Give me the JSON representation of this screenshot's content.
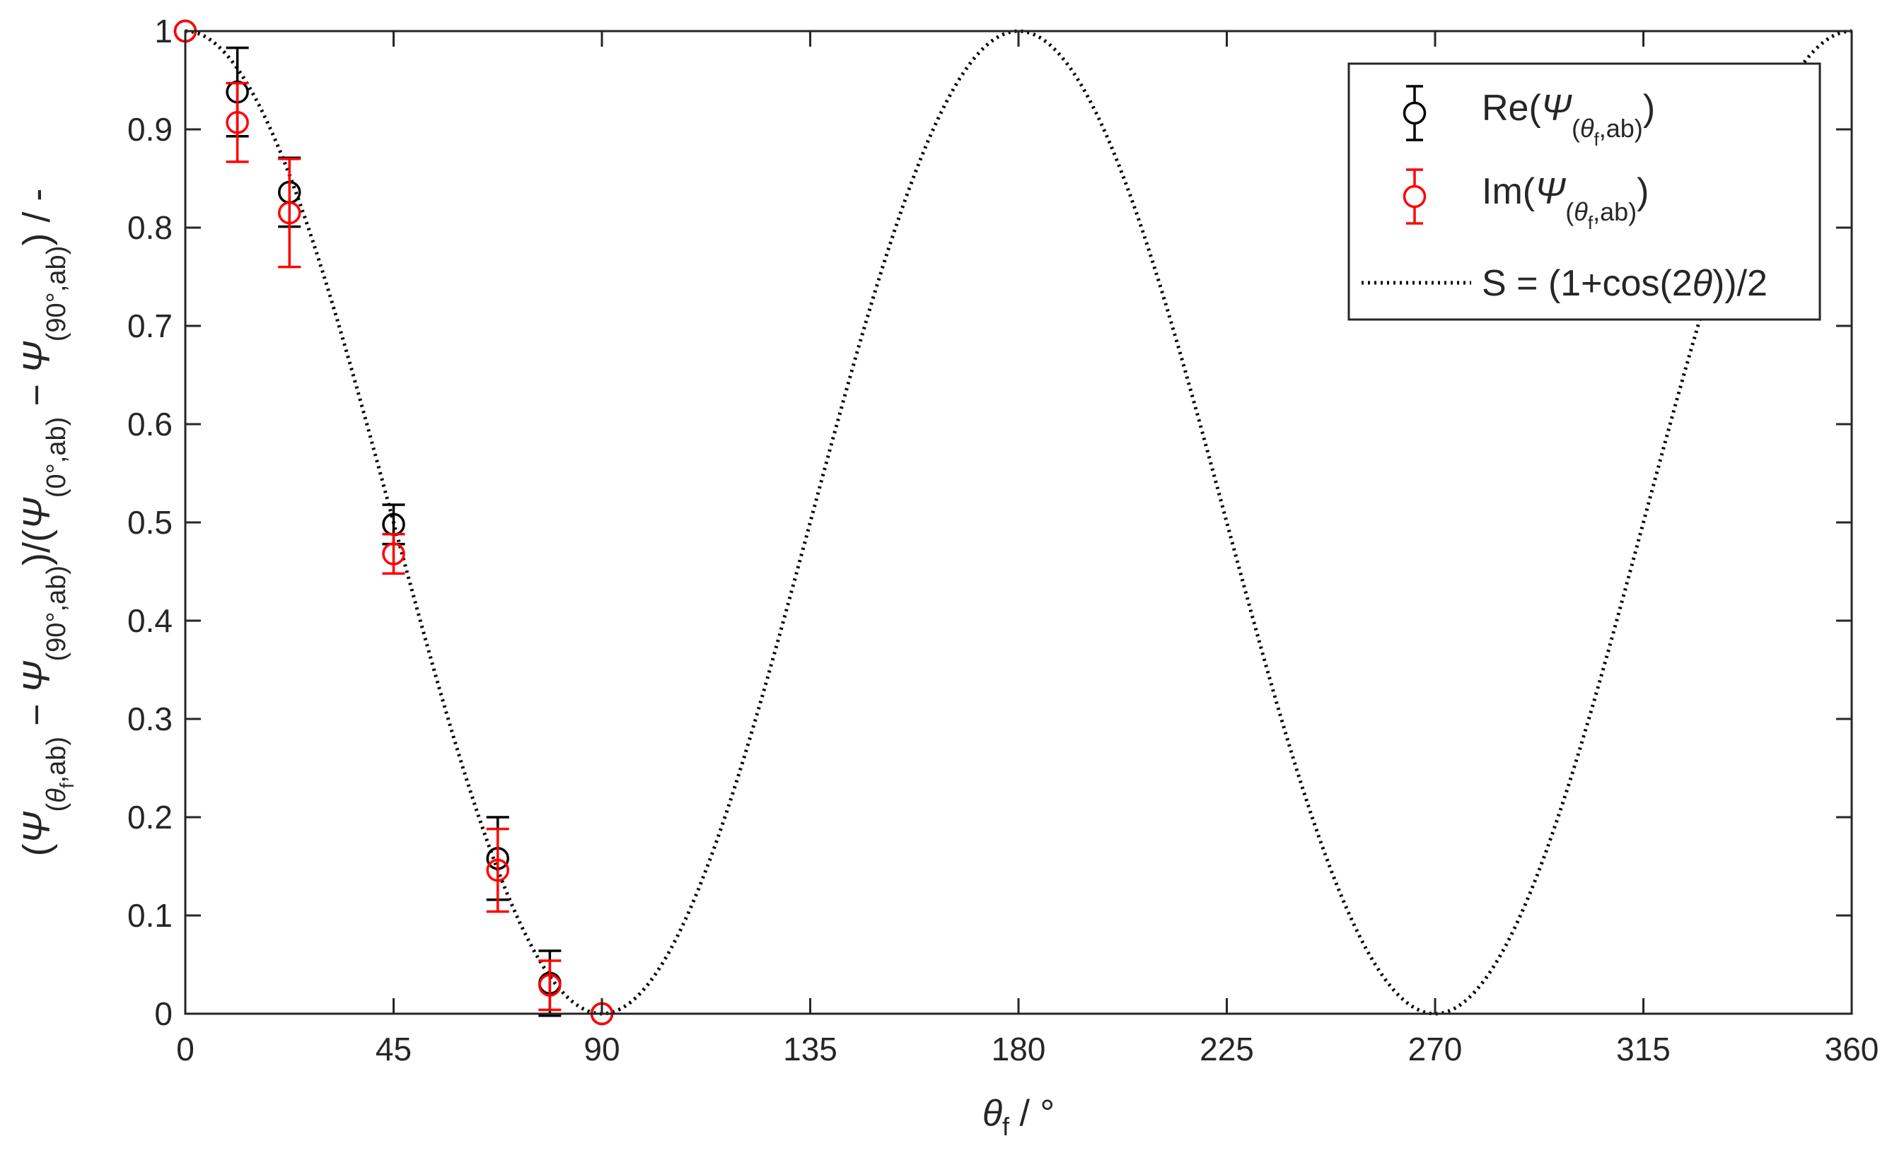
{
  "colors": {
    "re": "#000000",
    "im": "#ff0000",
    "curve": "#000000",
    "axis": "#262626",
    "background": "#ffffff"
  },
  "chart_data": {
    "type": "scatter",
    "xlabel": {
      "main": "θ",
      "sub": "f",
      "rest": " / °"
    },
    "ylabel": {
      "parts": [
        {
          "t": "(",
          "k": "n"
        },
        {
          "t": "Ψ",
          "k": "i"
        },
        {
          "t": "(",
          "k": "s"
        },
        {
          "t": "θ",
          "k": "si"
        },
        {
          "t": "f",
          "k": "ss"
        },
        {
          "t": ",ab)",
          "k": "s"
        },
        {
          "t": " − ",
          "k": "n"
        },
        {
          "t": "Ψ",
          "k": "i"
        },
        {
          "t": "(90°,ab)",
          "k": "s"
        },
        {
          "t": ")/(",
          "k": "n"
        },
        {
          "t": "Ψ",
          "k": "i"
        },
        {
          "t": "(0°,ab)",
          "k": "s"
        },
        {
          "t": " − ",
          "k": "n"
        },
        {
          "t": "Ψ",
          "k": "i"
        },
        {
          "t": "(90°,ab)",
          "k": "s"
        },
        {
          "t": ") / -",
          "k": "n"
        }
      ]
    },
    "xlim": [
      0,
      360
    ],
    "ylim": [
      0,
      1
    ],
    "xticks": [
      0,
      45,
      90,
      135,
      180,
      225,
      270,
      315,
      360
    ],
    "xtick_labels": [
      "0",
      "45",
      "90",
      "135",
      "180",
      "225",
      "270",
      "315",
      "360"
    ],
    "yticks": [
      0,
      0.1,
      0.2,
      0.3,
      0.4,
      0.5,
      0.6,
      0.7,
      0.8,
      0.9,
      1
    ],
    "ytick_labels": [
      "0",
      "0.1",
      "0.2",
      "0.3",
      "0.4",
      "0.5",
      "0.6",
      "0.7",
      "0.8",
      "0.9",
      "1"
    ],
    "grid": false,
    "legend_position": "top-right",
    "series": [
      {
        "key": "re",
        "kind": "errorbar",
        "legend": {
          "pre": "Re(",
          "sym": "Ψ",
          "sub_pre": "(",
          "sub_theta": "θ",
          "sub_f": "f",
          "sub_post": ",ab)",
          "post": ")"
        },
        "x": [
          0,
          11.25,
          22.5,
          45,
          67.5,
          78.75,
          90
        ],
        "y": [
          1.0,
          0.938,
          0.836,
          0.498,
          0.158,
          0.031,
          0.0
        ],
        "err": [
          0,
          0.045,
          0.035,
          0.02,
          0.042,
          0.033,
          0
        ]
      },
      {
        "key": "im",
        "kind": "errorbar",
        "legend": {
          "pre": "Im(",
          "sym": "Ψ",
          "sub_pre": "(",
          "sub_theta": "θ",
          "sub_f": "f",
          "sub_post": ",ab)",
          "post": ")"
        },
        "x": [
          0,
          11.25,
          22.5,
          45,
          67.5,
          78.75,
          90
        ],
        "y": [
          1.0,
          0.907,
          0.815,
          0.468,
          0.146,
          0.029,
          0.0
        ],
        "err": [
          0,
          0.04,
          0.055,
          0.02,
          0.042,
          0.025,
          0
        ]
      },
      {
        "key": "curve",
        "kind": "dotted-line",
        "legend": {
          "text_pre": "S = (1+cos(2",
          "sym": "θ",
          "text_post": "))/2"
        },
        "function": "(1+cos(2θ))/2"
      }
    ]
  }
}
